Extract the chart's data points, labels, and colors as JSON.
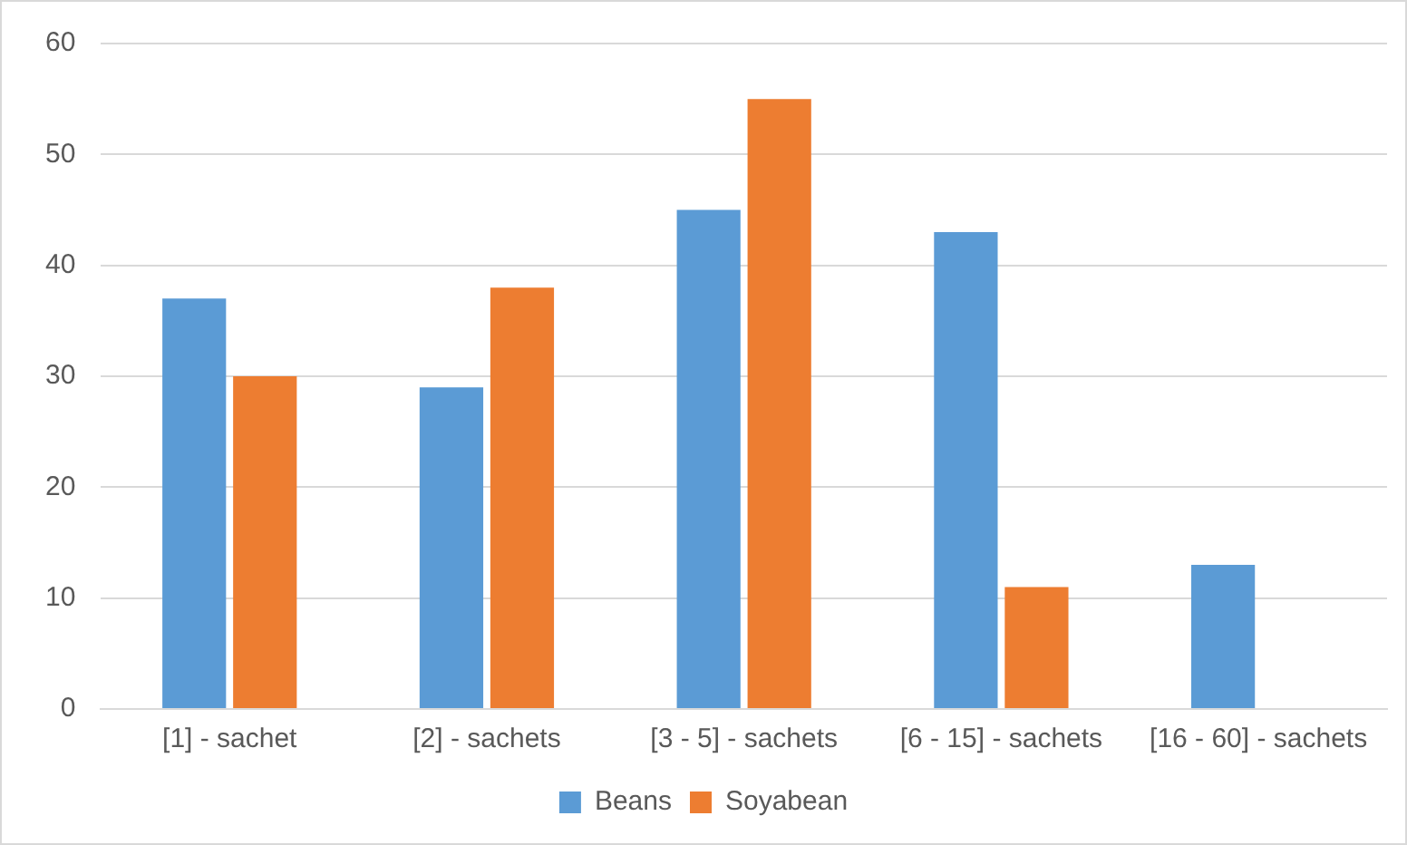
{
  "chart_data": {
    "type": "bar",
    "categories": [
      "[1] - sachet",
      "[2] - sachets",
      "[3 - 5] - sachets",
      "[6 - 15] - sachets",
      "[16 - 60] - sachets"
    ],
    "series": [
      {
        "name": "Beans",
        "color": "#5b9bd5",
        "values": [
          37,
          29,
          45,
          43,
          13
        ]
      },
      {
        "name": "Soyabean",
        "color": "#ed7d31",
        "values": [
          30,
          38,
          55,
          11,
          0
        ]
      }
    ],
    "ylim": [
      0,
      60
    ],
    "yticks": [
      0,
      10,
      20,
      30,
      40,
      50,
      60
    ],
    "grid": "y",
    "legend": "bottom"
  }
}
